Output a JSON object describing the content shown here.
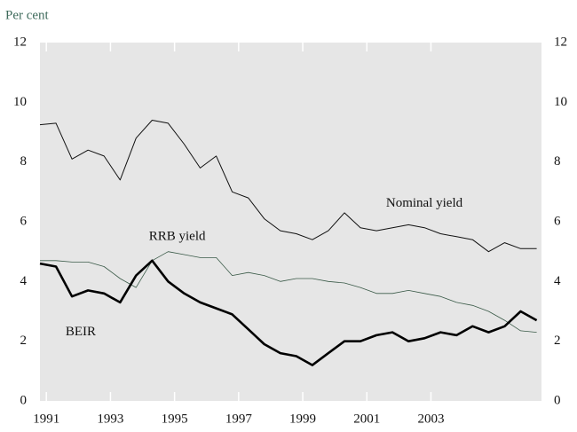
{
  "chart_data": {
    "type": "line",
    "y_label": "Per cent",
    "x": [
      1990.8,
      1991.3,
      1991.8,
      1992.3,
      1992.8,
      1993.3,
      1993.8,
      1994.3,
      1994.8,
      1995.3,
      1995.8,
      1996.3,
      1996.8,
      1997.3,
      1997.8,
      1998.3,
      1998.8,
      1999.3,
      1999.8,
      2000.3,
      2000.8,
      2001.3,
      2001.8,
      2002.3,
      2002.8,
      2003.3,
      2003.8,
      2004.3,
      2004.8,
      2005.3,
      2005.8,
      2006.3
    ],
    "xlim": [
      1990.8,
      2006.45
    ],
    "xticks": [
      1991,
      1993,
      1995,
      1997,
      1999,
      2001,
      2003
    ],
    "ylim": [
      0,
      12
    ],
    "yticks": [
      0,
      2,
      4,
      6,
      8,
      10,
      12
    ],
    "y2lim": [
      0,
      12
    ],
    "y2ticks": [
      0,
      2,
      4,
      6,
      8,
      10,
      12
    ],
    "background": "#e6e6e6",
    "series": [
      {
        "name": "Nominal yield",
        "color": "#111111",
        "linewidth": 1,
        "values": [
          9.25,
          9.3,
          8.1,
          8.4,
          8.2,
          7.4,
          8.8,
          9.4,
          9.3,
          8.6,
          7.8,
          8.2,
          7.0,
          6.8,
          6.1,
          5.7,
          5.6,
          5.4,
          5.7,
          6.3,
          5.8,
          5.7,
          5.8,
          5.9,
          5.8,
          5.6,
          5.5,
          5.4,
          5.0,
          5.3,
          5.1,
          5.1
        ]
      },
      {
        "name": "RRB yield",
        "color": "#3a5a48",
        "linewidth": 0.8,
        "values": [
          4.7,
          4.7,
          4.65,
          4.65,
          4.5,
          4.1,
          3.8,
          4.7,
          5.0,
          4.9,
          4.8,
          4.8,
          4.2,
          4.3,
          4.2,
          4.0,
          4.1,
          4.1,
          4.0,
          3.95,
          3.8,
          3.6,
          3.6,
          3.7,
          3.6,
          3.5,
          3.3,
          3.2,
          3.0,
          2.7,
          2.35,
          2.3
        ]
      },
      {
        "name": "BEIR",
        "color": "#000000",
        "linewidth": 2.6,
        "values": [
          4.6,
          4.5,
          3.5,
          3.7,
          3.6,
          3.3,
          4.2,
          4.7,
          4.0,
          3.6,
          3.3,
          3.1,
          2.9,
          2.4,
          1.9,
          1.6,
          1.5,
          1.2,
          1.6,
          2.0,
          2.0,
          2.2,
          2.3,
          2.0,
          2.1,
          2.3,
          2.2,
          2.5,
          2.3,
          2.5,
          3.0,
          2.7
        ]
      }
    ],
    "annotations": [
      {
        "text": "Nominal yield",
        "x": 2001.6,
        "y": 6.6
      },
      {
        "text": "RRB yield",
        "x": 1994.2,
        "y": 5.5
      },
      {
        "text": "BEIR",
        "x": 1991.6,
        "y": 2.3
      }
    ]
  }
}
